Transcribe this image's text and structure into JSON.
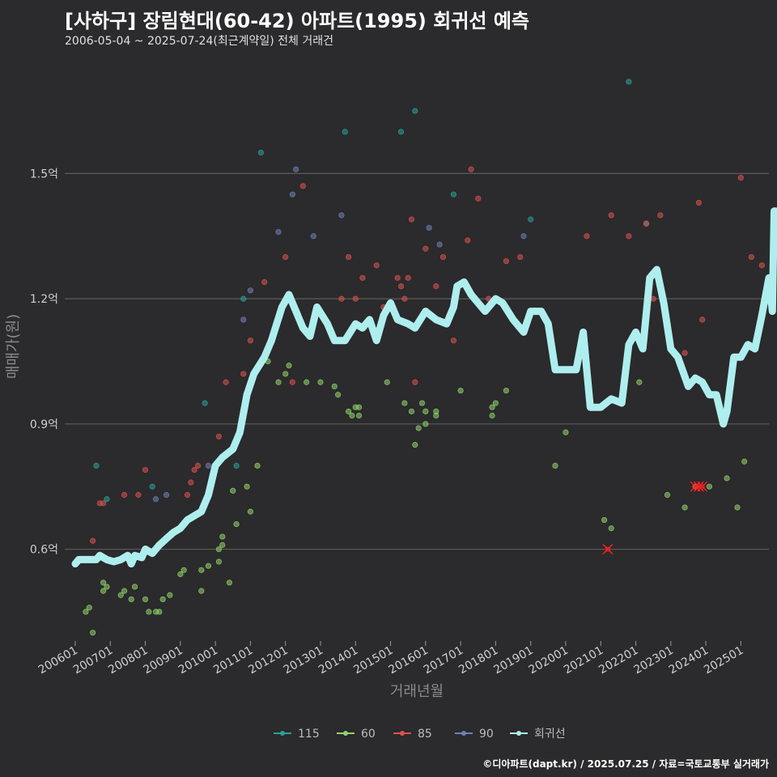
{
  "header": {
    "title": "[사하구] 장림현대(60-42) 아파트(1995) 회귀선 예측",
    "subtitle": "2006-05-04 ~ 2025-07-24(최근계약일) 전체 거래건"
  },
  "caption": "©디아파트(dapt.kr) / 2025.07.25 / 자료=국토교통부 실거래가",
  "colors": {
    "background": "#2b2a2c",
    "grid": "#5c5c5c",
    "s115": "#2aa198",
    "s60": "#8fd36b",
    "s85": "#d9534f",
    "s90": "#6f7fb8",
    "regression": "#aeeeee",
    "cancel": "#ff2020"
  },
  "chart_data": {
    "type": "scatter",
    "title": "[사하구] 장림현대(60-42) 아파트(1995) 회귀선 예측",
    "xlabel": "거래년월",
    "ylabel": "매매가(원)",
    "ylim": [
      0.38,
      1.78
    ],
    "xlim": [
      2005.7,
      2025.8
    ],
    "yticks": [
      {
        "value": 0.6,
        "label": "0.6억"
      },
      {
        "value": 0.9,
        "label": "0.9억"
      },
      {
        "value": 1.2,
        "label": "1.2억"
      },
      {
        "value": 1.5,
        "label": "1.5억"
      }
    ],
    "xticks": [
      "200601",
      "200701",
      "200801",
      "200901",
      "201001",
      "201101",
      "201201",
      "201301",
      "201401",
      "201501",
      "201601",
      "201701",
      "201801",
      "201901",
      "202001",
      "202101",
      "202201",
      "202301",
      "202401",
      "202501"
    ],
    "legend": {
      "position": "bottom",
      "items": [
        {
          "name": "115",
          "color": "#2aa198"
        },
        {
          "name": "60",
          "color": "#8fd36b"
        },
        {
          "name": "85",
          "color": "#d9534f"
        },
        {
          "name": "90",
          "color": "#6f7fb8"
        },
        {
          "name": "회귀선",
          "color": "#aeeeee"
        }
      ]
    },
    "series": [
      {
        "name": "115",
        "color": "#2aa198",
        "points": [
          [
            2006.6,
            0.8
          ],
          [
            2006.9,
            0.72
          ],
          [
            2008.2,
            0.75
          ],
          [
            2009.7,
            0.95
          ],
          [
            2010.6,
            0.8
          ],
          [
            2010.8,
            1.2
          ],
          [
            2011.3,
            1.55
          ],
          [
            2013.7,
            1.6
          ],
          [
            2015.3,
            1.6
          ],
          [
            2015.7,
            1.65
          ],
          [
            2016.8,
            1.45
          ],
          [
            2019.0,
            1.39
          ],
          [
            2021.8,
            1.72
          ],
          [
            2022.3,
            1.38
          ]
        ]
      },
      {
        "name": "60",
        "color": "#8fd36b",
        "points": [
          [
            2006.3,
            0.45
          ],
          [
            2006.4,
            0.46
          ],
          [
            2006.5,
            0.4
          ],
          [
            2006.8,
            0.5
          ],
          [
            2006.8,
            0.52
          ],
          [
            2006.9,
            0.51
          ],
          [
            2007.3,
            0.49
          ],
          [
            2007.4,
            0.5
          ],
          [
            2007.6,
            0.48
          ],
          [
            2007.7,
            0.51
          ],
          [
            2008.0,
            0.48
          ],
          [
            2008.1,
            0.45
          ],
          [
            2008.3,
            0.45
          ],
          [
            2008.4,
            0.45
          ],
          [
            2008.5,
            0.48
          ],
          [
            2008.7,
            0.49
          ],
          [
            2009.0,
            0.54
          ],
          [
            2009.1,
            0.55
          ],
          [
            2009.6,
            0.5
          ],
          [
            2009.6,
            0.55
          ],
          [
            2009.8,
            0.56
          ],
          [
            2010.1,
            0.57
          ],
          [
            2010.1,
            0.6
          ],
          [
            2010.2,
            0.61
          ],
          [
            2010.2,
            0.63
          ],
          [
            2010.4,
            0.52
          ],
          [
            2010.5,
            0.74
          ],
          [
            2010.6,
            0.66
          ],
          [
            2010.9,
            0.75
          ],
          [
            2011.0,
            0.69
          ],
          [
            2011.2,
            0.8
          ],
          [
            2011.5,
            1.05
          ],
          [
            2011.8,
            1.0
          ],
          [
            2012.0,
            1.02
          ],
          [
            2012.1,
            1.04
          ],
          [
            2012.6,
            1.0
          ],
          [
            2013.0,
            1.0
          ],
          [
            2013.4,
            0.99
          ],
          [
            2013.5,
            0.97
          ],
          [
            2013.8,
            0.93
          ],
          [
            2013.9,
            0.92
          ],
          [
            2014.0,
            0.94
          ],
          [
            2014.1,
            0.94
          ],
          [
            2014.1,
            0.92
          ],
          [
            2014.9,
            1.0
          ],
          [
            2015.4,
            0.95
          ],
          [
            2015.6,
            0.93
          ],
          [
            2015.7,
            0.85
          ],
          [
            2015.8,
            0.89
          ],
          [
            2015.9,
            0.95
          ],
          [
            2016.0,
            0.9
          ],
          [
            2016.0,
            0.93
          ],
          [
            2016.3,
            0.93
          ],
          [
            2016.3,
            0.92
          ],
          [
            2017.0,
            0.98
          ],
          [
            2017.9,
            0.92
          ],
          [
            2017.9,
            0.94
          ],
          [
            2018.0,
            0.95
          ],
          [
            2018.3,
            0.98
          ],
          [
            2019.7,
            0.8
          ],
          [
            2020.0,
            0.88
          ],
          [
            2021.1,
            0.67
          ],
          [
            2021.3,
            0.65
          ],
          [
            2022.1,
            1.0
          ],
          [
            2022.9,
            0.73
          ],
          [
            2023.4,
            0.7
          ],
          [
            2023.7,
            0.75
          ],
          [
            2024.1,
            0.75
          ],
          [
            2024.6,
            0.77
          ],
          [
            2024.9,
            0.7
          ],
          [
            2025.1,
            0.81
          ]
        ]
      },
      {
        "name": "85",
        "color": "#d9534f",
        "points": [
          [
            2006.5,
            0.62
          ],
          [
            2006.7,
            0.71
          ],
          [
            2006.8,
            0.71
          ],
          [
            2007.4,
            0.73
          ],
          [
            2007.8,
            0.73
          ],
          [
            2008.0,
            0.79
          ],
          [
            2009.2,
            0.73
          ],
          [
            2009.3,
            0.76
          ],
          [
            2009.4,
            0.79
          ],
          [
            2009.5,
            0.8
          ],
          [
            2010.1,
            0.87
          ],
          [
            2010.3,
            1.0
          ],
          [
            2010.8,
            1.02
          ],
          [
            2011.0,
            1.1
          ],
          [
            2011.4,
            1.24
          ],
          [
            2012.0,
            1.3
          ],
          [
            2012.2,
            1.0
          ],
          [
            2012.5,
            1.47
          ],
          [
            2013.6,
            1.2
          ],
          [
            2013.8,
            1.3
          ],
          [
            2014.0,
            1.2
          ],
          [
            2014.2,
            1.25
          ],
          [
            2014.6,
            1.28
          ],
          [
            2014.8,
            1.18
          ],
          [
            2015.2,
            1.25
          ],
          [
            2015.3,
            1.23
          ],
          [
            2015.4,
            1.2
          ],
          [
            2015.5,
            1.25
          ],
          [
            2015.6,
            1.39
          ],
          [
            2015.7,
            1.0
          ],
          [
            2016.0,
            1.32
          ],
          [
            2016.3,
            1.23
          ],
          [
            2016.5,
            1.3
          ],
          [
            2016.8,
            1.1
          ],
          [
            2017.2,
            1.34
          ],
          [
            2017.3,
            1.51
          ],
          [
            2017.5,
            1.44
          ],
          [
            2017.8,
            1.2
          ],
          [
            2018.0,
            1.2
          ],
          [
            2018.3,
            1.29
          ],
          [
            2018.7,
            1.3
          ],
          [
            2020.6,
            1.35
          ],
          [
            2021.3,
            1.4
          ],
          [
            2021.8,
            1.35
          ],
          [
            2022.3,
            1.38
          ],
          [
            2022.5,
            1.2
          ],
          [
            2022.7,
            1.4
          ],
          [
            2023.4,
            1.07
          ],
          [
            2023.8,
            1.43
          ],
          [
            2023.9,
            1.15
          ],
          [
            2025.0,
            1.49
          ],
          [
            2025.3,
            1.3
          ],
          [
            2025.6,
            1.28
          ]
        ]
      },
      {
        "name": "90",
        "color": "#6f7fb8",
        "points": [
          [
            2008.3,
            0.72
          ],
          [
            2008.6,
            0.73
          ],
          [
            2009.8,
            0.8
          ],
          [
            2010.0,
            0.8
          ],
          [
            2010.8,
            1.15
          ],
          [
            2011.0,
            1.22
          ],
          [
            2011.8,
            1.36
          ],
          [
            2012.2,
            1.45
          ],
          [
            2012.3,
            1.51
          ],
          [
            2012.8,
            1.35
          ],
          [
            2013.6,
            1.4
          ],
          [
            2016.1,
            1.37
          ],
          [
            2016.4,
            1.33
          ],
          [
            2018.8,
            1.35
          ]
        ]
      }
    ],
    "cancelled": [
      [
        2021.2,
        0.6
      ],
      [
        2023.7,
        0.75
      ],
      [
        2023.8,
        0.75
      ],
      [
        2023.9,
        0.75
      ]
    ],
    "regression": [
      [
        2006.0,
        0.565
      ],
      [
        2006.1,
        0.575
      ],
      [
        2006.3,
        0.575
      ],
      [
        2006.6,
        0.575
      ],
      [
        2006.7,
        0.585
      ],
      [
        2006.9,
        0.575
      ],
      [
        2007.1,
        0.57
      ],
      [
        2007.3,
        0.575
      ],
      [
        2007.5,
        0.585
      ],
      [
        2007.6,
        0.565
      ],
      [
        2007.7,
        0.585
      ],
      [
        2007.9,
        0.58
      ],
      [
        2008.0,
        0.6
      ],
      [
        2008.2,
        0.59
      ],
      [
        2008.4,
        0.61
      ],
      [
        2008.6,
        0.625
      ],
      [
        2008.8,
        0.64
      ],
      [
        2009.0,
        0.65
      ],
      [
        2009.2,
        0.67
      ],
      [
        2009.4,
        0.68
      ],
      [
        2009.6,
        0.69
      ],
      [
        2009.8,
        0.73
      ],
      [
        2010.0,
        0.8
      ],
      [
        2010.2,
        0.82
      ],
      [
        2010.5,
        0.84
      ],
      [
        2010.7,
        0.88
      ],
      [
        2010.9,
        0.97
      ],
      [
        2011.1,
        1.02
      ],
      [
        2011.4,
        1.06
      ],
      [
        2011.6,
        1.1
      ],
      [
        2011.9,
        1.18
      ],
      [
        2012.1,
        1.21
      ],
      [
        2012.3,
        1.17
      ],
      [
        2012.5,
        1.13
      ],
      [
        2012.7,
        1.11
      ],
      [
        2012.9,
        1.18
      ],
      [
        2013.2,
        1.14
      ],
      [
        2013.4,
        1.1
      ],
      [
        2013.7,
        1.1
      ],
      [
        2014.0,
        1.14
      ],
      [
        2014.2,
        1.13
      ],
      [
        2014.4,
        1.15
      ],
      [
        2014.6,
        1.1
      ],
      [
        2014.8,
        1.16
      ],
      [
        2015.0,
        1.19
      ],
      [
        2015.2,
        1.15
      ],
      [
        2015.5,
        1.14
      ],
      [
        2015.7,
        1.13
      ],
      [
        2016.0,
        1.17
      ],
      [
        2016.3,
        1.15
      ],
      [
        2016.6,
        1.14
      ],
      [
        2016.8,
        1.18
      ],
      [
        2016.9,
        1.23
      ],
      [
        2017.1,
        1.24
      ],
      [
        2017.3,
        1.21
      ],
      [
        2017.5,
        1.19
      ],
      [
        2017.7,
        1.17
      ],
      [
        2018.0,
        1.2
      ],
      [
        2018.2,
        1.19
      ],
      [
        2018.5,
        1.15
      ],
      [
        2018.8,
        1.12
      ],
      [
        2019.0,
        1.17
      ],
      [
        2019.3,
        1.17
      ],
      [
        2019.5,
        1.14
      ],
      [
        2019.7,
        1.03
      ],
      [
        2020.0,
        1.03
      ],
      [
        2020.3,
        1.03
      ],
      [
        2020.5,
        1.12
      ],
      [
        2020.7,
        0.94
      ],
      [
        2021.0,
        0.94
      ],
      [
        2021.3,
        0.96
      ],
      [
        2021.6,
        0.95
      ],
      [
        2021.8,
        1.09
      ],
      [
        2022.0,
        1.12
      ],
      [
        2022.2,
        1.08
      ],
      [
        2022.4,
        1.25
      ],
      [
        2022.6,
        1.27
      ],
      [
        2022.8,
        1.19
      ],
      [
        2023.0,
        1.08
      ],
      [
        2023.2,
        1.06
      ],
      [
        2023.5,
        0.99
      ],
      [
        2023.7,
        1.01
      ],
      [
        2023.9,
        1.0
      ],
      [
        2024.1,
        0.97
      ],
      [
        2024.3,
        0.97
      ],
      [
        2024.5,
        0.9
      ],
      [
        2024.6,
        0.93
      ],
      [
        2024.8,
        1.06
      ],
      [
        2025.0,
        1.06
      ],
      [
        2025.2,
        1.09
      ],
      [
        2025.4,
        1.08
      ],
      [
        2025.6,
        1.16
      ],
      [
        2025.8,
        1.25
      ],
      [
        2025.9,
        1.17
      ],
      [
        2025.95,
        1.41
      ],
      [
        2026.0,
        1.41
      ]
    ]
  }
}
